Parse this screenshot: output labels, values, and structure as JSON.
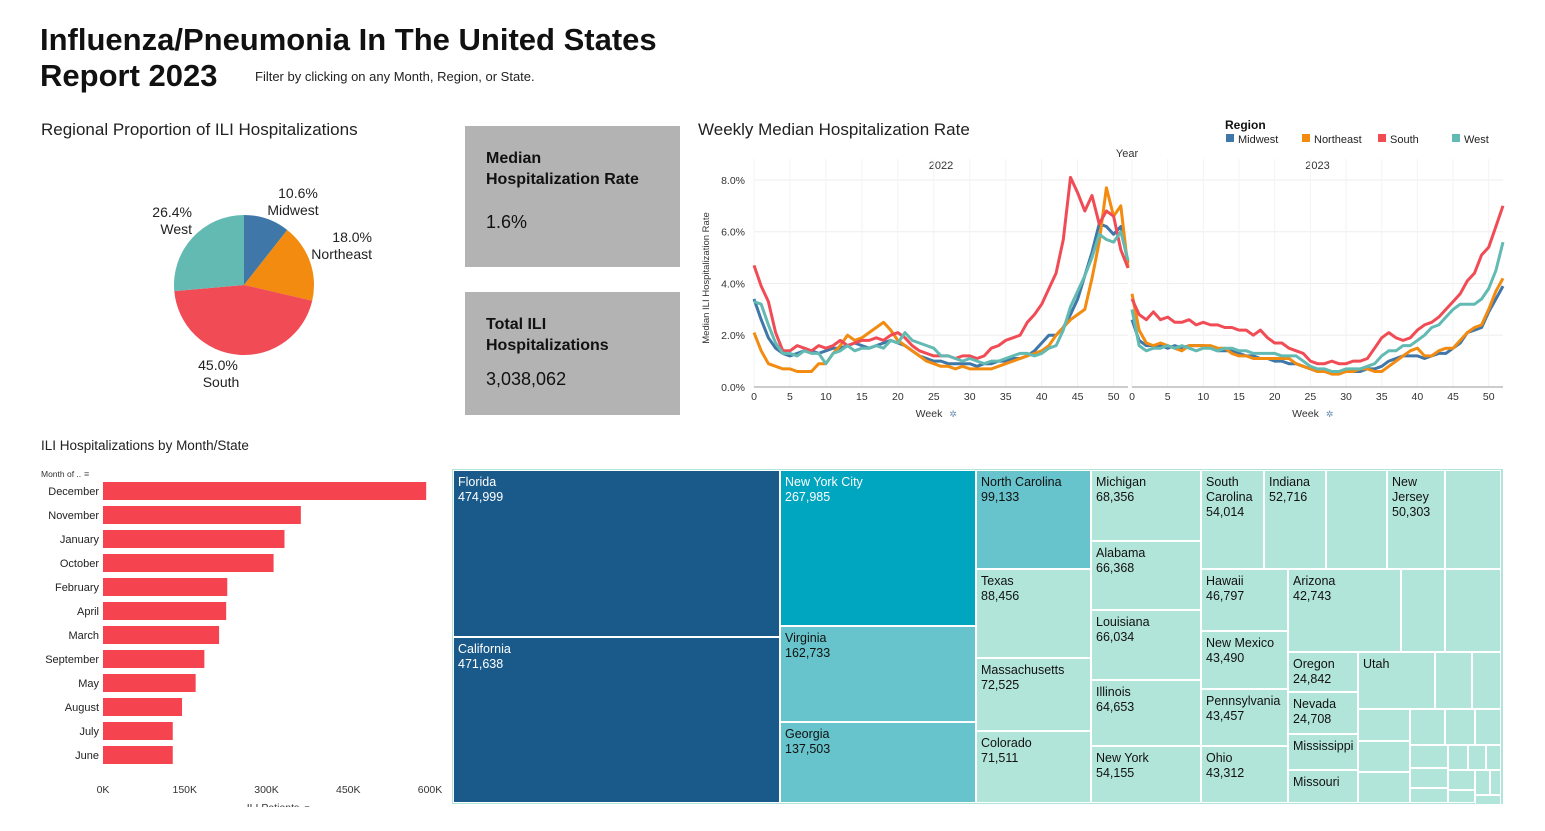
{
  "header": {
    "title_line1": "Influenza/Pneumonia In The United States",
    "title_line2": "Report 2023",
    "subtitle": "Filter by clicking on any Month, Region, or State."
  },
  "colors": {
    "Midwest": "#3f77a9",
    "Northeast": "#f28b0f",
    "South": "#f14b55",
    "West": "#62bab3",
    "bar": "#f5444f",
    "tm_dark": "#1a5a8a",
    "tm_teal": "#00a5c0",
    "tm_mid": "#68c4cc",
    "tm_light": "#b2e5da",
    "kpi_bg": "#b3b3b3"
  },
  "pie_section": {
    "title": "Regional Proportion of ILI Hospitalizations"
  },
  "kpis": {
    "median": {
      "label_line1": "Median",
      "label_line2": "Hospitalization Rate",
      "value": "1.6%"
    },
    "total": {
      "label_line1": "Total ILI",
      "label_line2": "Hospitalizations",
      "value": "3,038,062"
    }
  },
  "line_section": {
    "title": "Weekly Median Hospitalization Rate",
    "year_label": "Year",
    "legend_title": "Region",
    "ylabel": "Median ILI Hospitalization Rate",
    "xlabel": "Week"
  },
  "bar_section": {
    "title": "ILI Hospitalizations by Month/State",
    "ylabel": "Month of ..",
    "xlabel": "ILI Patients"
  },
  "chart_data": [
    {
      "type": "pie",
      "categories": [
        "Midwest",
        "Northeast",
        "South",
        "West"
      ],
      "values": [
        10.6,
        18.0,
        45.0,
        26.4
      ],
      "labels": [
        "10.6%",
        "18.0%",
        "45.0%",
        "26.4%"
      ]
    },
    {
      "type": "line",
      "panels": [
        "2022",
        "2023"
      ],
      "xticks": [
        0,
        5,
        10,
        15,
        20,
        25,
        30,
        35,
        40,
        45,
        50
      ],
      "yticks": [
        "0.0%",
        "2.0%",
        "4.0%",
        "6.0%",
        "8.0%"
      ],
      "ylim": [
        0,
        8.5
      ],
      "series": [
        {
          "name": "Midwest",
          "p2022": [
            3.4,
            2.6,
            1.9,
            1.5,
            1.3,
            1.2,
            1.3,
            1.4,
            1.4,
            1.3,
            1.4,
            1.5,
            1.5,
            1.6,
            1.7,
            1.6,
            1.5,
            1.6,
            1.7,
            1.8,
            1.7,
            1.6,
            1.4,
            1.2,
            1.1,
            1.0,
            1.0,
            0.9,
            0.9,
            0.9,
            0.9,
            0.8,
            0.9,
            0.9,
            1.0,
            1.0,
            1.1,
            1.1,
            1.2,
            1.4,
            1.7,
            2.0,
            2.0,
            2.3,
            2.8,
            3.4,
            4.3,
            5.2,
            6.3,
            6.2,
            5.9,
            6.2,
            4.8
          ],
          "p2023": [
            2.6,
            1.8,
            1.6,
            1.6,
            1.6,
            1.5,
            1.6,
            1.5,
            1.6,
            1.6,
            1.6,
            1.5,
            1.4,
            1.4,
            1.4,
            1.3,
            1.2,
            1.2,
            1.1,
            1.1,
            1.0,
            1.0,
            0.9,
            0.9,
            0.8,
            0.7,
            0.6,
            0.6,
            0.6,
            0.6,
            0.6,
            0.6,
            0.6,
            0.7,
            0.7,
            0.8,
            1.0,
            1.1,
            1.2,
            1.2,
            1.2,
            1.1,
            1.2,
            1.3,
            1.3,
            1.5,
            1.7,
            2.1,
            2.2,
            2.3,
            2.9,
            3.4,
            3.9
          ]
        },
        {
          "name": "Northeast",
          "p2022": [
            2.1,
            1.4,
            0.9,
            0.8,
            0.7,
            0.7,
            0.6,
            0.6,
            0.6,
            0.9,
            0.9,
            1.3,
            1.6,
            2.0,
            1.8,
            1.9,
            2.1,
            2.3,
            2.5,
            2.2,
            1.8,
            1.6,
            1.4,
            1.2,
            1.0,
            0.9,
            0.8,
            0.8,
            0.7,
            0.8,
            0.7,
            0.7,
            0.7,
            0.7,
            0.8,
            0.9,
            1.0,
            1.1,
            1.2,
            1.3,
            1.4,
            1.6,
            2.0,
            2.3,
            2.6,
            2.8,
            3.0,
            4.2,
            5.6,
            7.7,
            6.6,
            7.0,
            4.6
          ],
          "p2023": [
            3.6,
            2.2,
            1.7,
            1.6,
            1.7,
            1.6,
            1.5,
            1.4,
            1.6,
            1.6,
            1.6,
            1.6,
            1.5,
            1.5,
            1.3,
            1.2,
            1.2,
            1.1,
            1.1,
            1.1,
            1.1,
            1.1,
            1.1,
            0.9,
            0.8,
            0.7,
            0.6,
            0.6,
            0.5,
            0.5,
            0.6,
            0.6,
            0.7,
            0.7,
            0.6,
            0.6,
            0.8,
            1.0,
            1.2,
            1.4,
            1.5,
            1.2,
            1.2,
            1.4,
            1.5,
            1.5,
            1.8,
            2.1,
            2.3,
            2.4,
            3.0,
            3.7,
            4.2
          ]
        },
        {
          "name": "South",
          "p2022": [
            4.7,
            3.9,
            3.3,
            2.1,
            1.4,
            1.4,
            1.6,
            1.5,
            1.4,
            1.6,
            1.5,
            1.6,
            1.8,
            1.6,
            1.7,
            1.8,
            1.8,
            1.9,
            1.8,
            2.0,
            2.1,
            1.9,
            1.6,
            1.4,
            1.3,
            1.2,
            1.2,
            1.2,
            1.1,
            1.2,
            1.2,
            1.1,
            1.2,
            1.5,
            1.6,
            1.8,
            1.9,
            2.0,
            2.5,
            2.8,
            3.2,
            3.8,
            4.4,
            5.7,
            8.1,
            7.5,
            6.8,
            7.4,
            6.3,
            6.8,
            6.6,
            5.3,
            4.6
          ],
          "p2023": [
            3.4,
            2.8,
            2.6,
            2.9,
            2.6,
            2.7,
            2.5,
            2.5,
            2.6,
            2.4,
            2.5,
            2.4,
            2.4,
            2.3,
            2.3,
            2.2,
            2.2,
            2.0,
            2.2,
            1.9,
            1.7,
            1.7,
            1.5,
            1.4,
            1.3,
            1.0,
            0.9,
            0.9,
            1.0,
            0.9,
            0.9,
            1.0,
            1.0,
            1.1,
            1.5,
            1.9,
            2.1,
            1.9,
            1.8,
            1.9,
            2.2,
            2.4,
            2.5,
            2.7,
            3.0,
            3.3,
            3.6,
            4.1,
            4.4,
            5.1,
            5.4,
            6.2,
            7.0
          ]
        },
        {
          "name": "West",
          "p2022": [
            3.3,
            3.2,
            2.4,
            1.7,
            1.3,
            1.3,
            1.2,
            1.4,
            1.3,
            1.3,
            0.9,
            1.3,
            1.4,
            1.6,
            1.4,
            1.5,
            1.5,
            1.6,
            1.5,
            1.8,
            1.7,
            2.1,
            1.8,
            1.7,
            1.6,
            1.5,
            1.2,
            1.2,
            1.1,
            1.0,
            1.1,
            1.0,
            0.9,
            1.0,
            1.0,
            1.1,
            1.2,
            1.3,
            1.3,
            1.2,
            1.3,
            1.5,
            1.6,
            2.2,
            3.1,
            3.7,
            4.3,
            5.0,
            5.9,
            5.7,
            5.6,
            6.0,
            4.9
          ],
          "p2023": [
            3.0,
            1.6,
            1.4,
            1.5,
            1.5,
            1.6,
            1.5,
            1.6,
            1.5,
            1.4,
            1.5,
            1.5,
            1.4,
            1.5,
            1.5,
            1.4,
            1.4,
            1.3,
            1.3,
            1.3,
            1.3,
            1.2,
            1.2,
            1.2,
            1.0,
            0.8,
            0.7,
            0.7,
            0.6,
            0.6,
            0.7,
            0.7,
            0.7,
            0.8,
            0.9,
            1.2,
            1.4,
            1.4,
            1.6,
            1.6,
            1.8,
            2.0,
            2.3,
            2.4,
            2.7,
            3.0,
            3.2,
            3.2,
            3.2,
            3.4,
            3.8,
            4.5,
            5.6
          ]
        }
      ]
    },
    {
      "type": "bar",
      "categories": [
        "December",
        "November",
        "January",
        "October",
        "February",
        "April",
        "March",
        "September",
        "May",
        "August",
        "July",
        "June"
      ],
      "values": [
        593000,
        363000,
        333000,
        313000,
        228000,
        226000,
        213000,
        186000,
        170000,
        145000,
        128000,
        128000
      ],
      "xticks": [
        0,
        150000,
        300000,
        450000,
        600000
      ],
      "xtick_labels": [
        "0K",
        "150K",
        "300K",
        "450K",
        "600K"
      ],
      "xlim": [
        0,
        600000
      ]
    },
    {
      "type": "treemap",
      "cells": [
        {
          "name": "Florida",
          "value": "474,999"
        },
        {
          "name": "California",
          "value": "471,638"
        },
        {
          "name": "New York City",
          "value": "267,985"
        },
        {
          "name": "Virginia",
          "value": "162,733"
        },
        {
          "name": "Georgia",
          "value": "137,503"
        },
        {
          "name": "North Carolina",
          "value": "99,133"
        },
        {
          "name": "Texas",
          "value": "88,456"
        },
        {
          "name": "Massachusetts",
          "value": "72,525"
        },
        {
          "name": "Colorado",
          "value": "71,511"
        },
        {
          "name": "Michigan",
          "value": "68,356"
        },
        {
          "name": "Alabama",
          "value": "66,368"
        },
        {
          "name": "Louisiana",
          "value": "66,034"
        },
        {
          "name": "Illinois",
          "value": "64,653"
        },
        {
          "name": "New York",
          "value": "54,155"
        },
        {
          "name": "South Carolina",
          "value": "54,014"
        },
        {
          "name": "Indiana",
          "value": "52,716"
        },
        {
          "name": "New Jersey",
          "value": "50,303"
        },
        {
          "name": "Hawaii",
          "value": "46,797"
        },
        {
          "name": "Arizona",
          "value": "42,743"
        },
        {
          "name": "New Mexico",
          "value": "43,490"
        },
        {
          "name": "Pennsylvania",
          "value": "43,457"
        },
        {
          "name": "Ohio",
          "value": "43,312"
        },
        {
          "name": "Oregon",
          "value": "24,842"
        },
        {
          "name": "Utah",
          "value": ""
        },
        {
          "name": "Nevada",
          "value": "24,708"
        },
        {
          "name": "Mississippi",
          "value": ""
        },
        {
          "name": "Missouri",
          "value": ""
        }
      ]
    }
  ]
}
